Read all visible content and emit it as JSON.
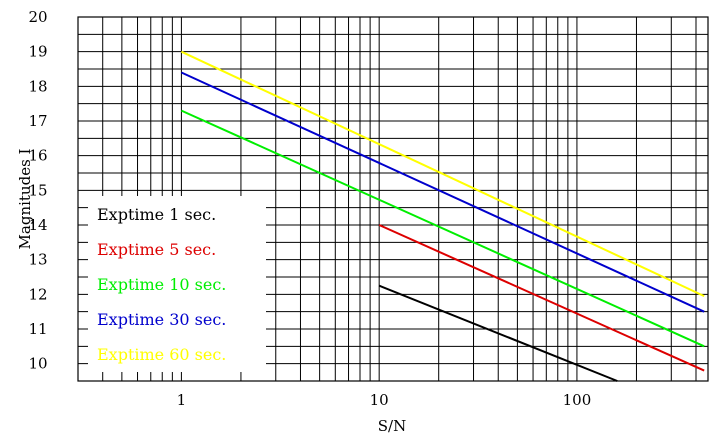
{
  "chart_data": {
    "type": "line",
    "title": "",
    "xlabel": "S/N",
    "ylabel": "Magnitudes I",
    "x_scale": "log",
    "xlim": [
      0.3,
      460
    ],
    "ylim": [
      9.5,
      20
    ],
    "grid": true,
    "legend_position": "left",
    "x_ticks": [
      1,
      10,
      100
    ],
    "x_tick_labels": [
      "1",
      "10",
      "100"
    ],
    "y_ticks": [
      10,
      11,
      12,
      13,
      14,
      15,
      16,
      17,
      18,
      19,
      20
    ],
    "y_tick_labels": [
      "10",
      "11",
      "12",
      "13",
      "14",
      "15",
      "16",
      "17",
      "18",
      "19",
      "20"
    ],
    "series": [
      {
        "name": "Exptime 1 sec.",
        "color": "#000000",
        "x": [
          10,
          160
        ],
        "y": [
          12.25,
          9.5
        ]
      },
      {
        "name": "Exptime 5 sec.",
        "color": "#dd0000",
        "x": [
          10,
          440
        ],
        "y": [
          14.0,
          9.8
        ]
      },
      {
        "name": "Exptime 10 sec.",
        "color": "#00ee00",
        "x": [
          1,
          440
        ],
        "y": [
          17.3,
          10.5
        ]
      },
      {
        "name": "Exptime 30 sec.",
        "color": "#0000cc",
        "x": [
          1,
          440
        ],
        "y": [
          18.4,
          11.5
        ]
      },
      {
        "name": "Exptime 60 sec.",
        "color": "#ffff00",
        "x": [
          1,
          440
        ],
        "y": [
          19.0,
          11.95
        ]
      }
    ]
  }
}
